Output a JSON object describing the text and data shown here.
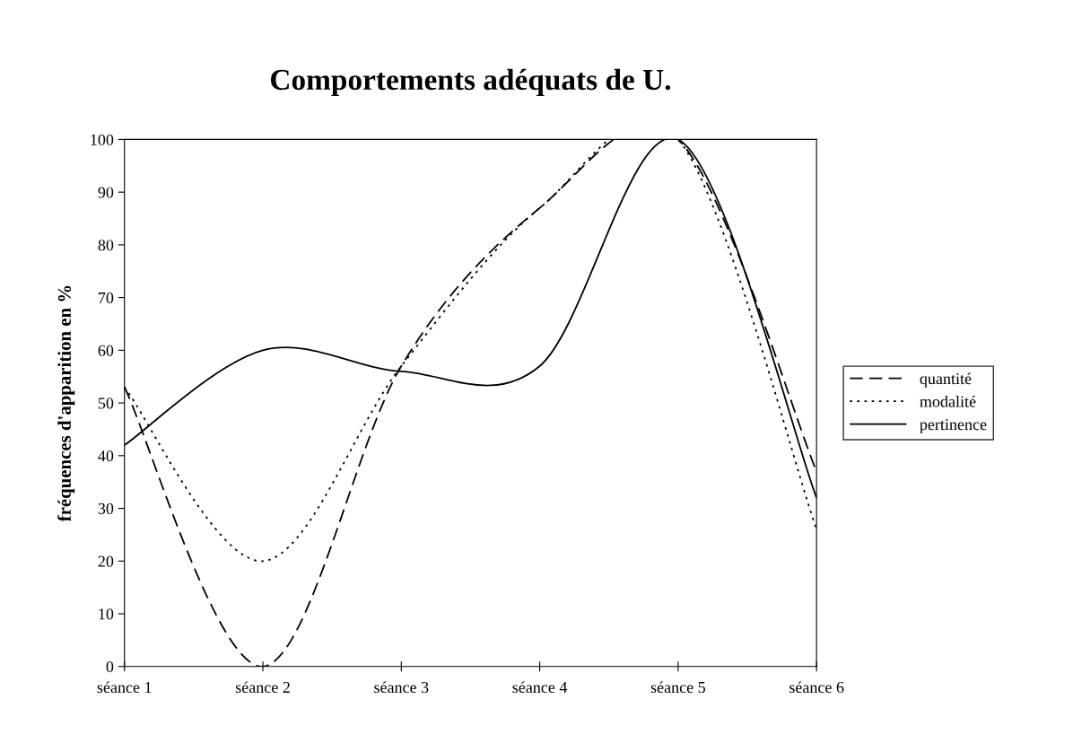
{
  "chart_data": {
    "type": "line",
    "title": "Comportements adéquats de U.",
    "ylabel": "fréquences d'apparition en %",
    "categories": [
      "séance 1",
      "séance 2",
      "séance 3",
      "séance 4",
      "séance 5",
      "séance 6"
    ],
    "series": [
      {
        "name": "quantité",
        "color": "#000000",
        "line_style": "dashed",
        "values": [
          53,
          0,
          57,
          87,
          100,
          37
        ]
      },
      {
        "name": "modalité",
        "color": "#000000",
        "line_style": "dotted",
        "values": [
          53,
          20,
          57,
          87,
          100,
          26
        ]
      },
      {
        "name": "pertinence",
        "color": "#000000",
        "line_style": "solid",
        "values": [
          42,
          60,
          56,
          57,
          100,
          32
        ]
      }
    ],
    "ylim": [
      0,
      100
    ],
    "yticks": [
      0,
      10,
      20,
      30,
      40,
      50,
      60,
      70,
      80,
      90,
      100
    ],
    "grid": false,
    "legend": "right",
    "marker": "none"
  }
}
